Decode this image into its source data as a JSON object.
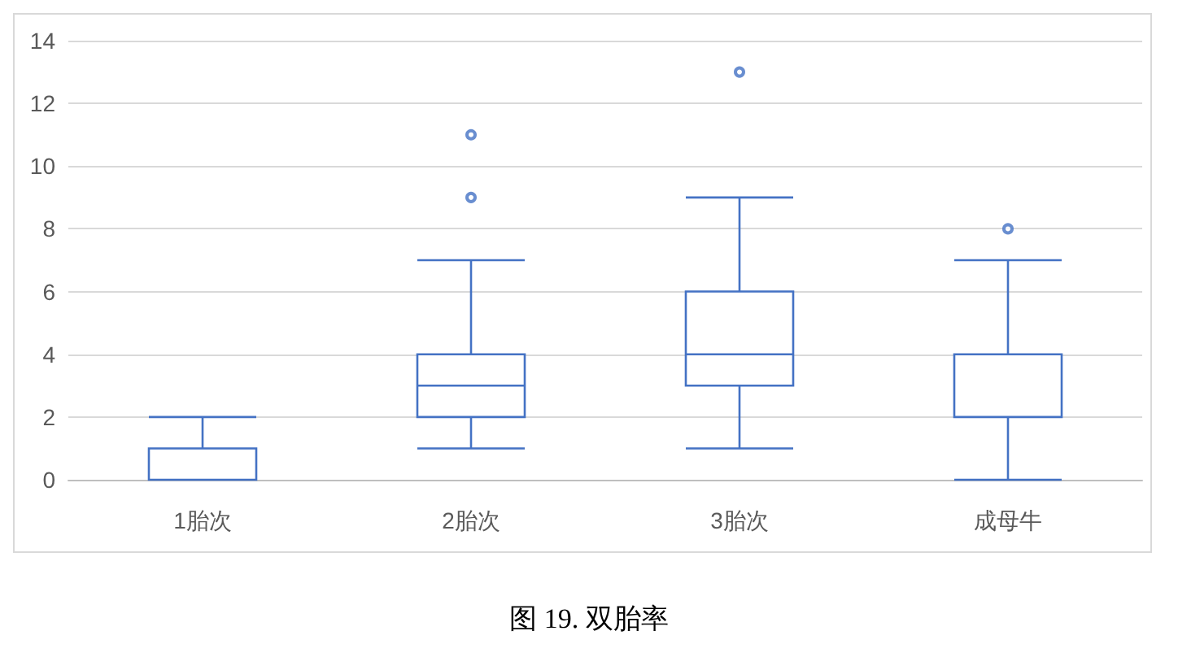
{
  "chart_data": {
    "type": "box",
    "title": "图 19. 双胎率",
    "categories": [
      "1胎次",
      "2胎次",
      "3胎次",
      "成母牛"
    ],
    "series": [
      {
        "color": "#4472c4",
        "boxes": [
          {
            "low": 0,
            "q1": 0,
            "median": 0,
            "q3": 1,
            "high": 2
          },
          {
            "low": 1,
            "q1": 2,
            "median": 3,
            "q3": 4,
            "high": 7,
            "outliers": [
              9,
              11
            ]
          },
          {
            "low": 1,
            "q1": 3,
            "median": 4,
            "q3": 6,
            "high": 9,
            "outliers": [
              13
            ]
          },
          {
            "low": 0,
            "q1": 2,
            "median": 2,
            "q3": 4,
            "high": 7,
            "outliers": [
              8
            ]
          }
        ]
      }
    ],
    "ylim": [
      0,
      14
    ],
    "yticks": [
      0,
      2,
      4,
      6,
      8,
      10,
      12,
      14
    ],
    "grid": "y"
  }
}
